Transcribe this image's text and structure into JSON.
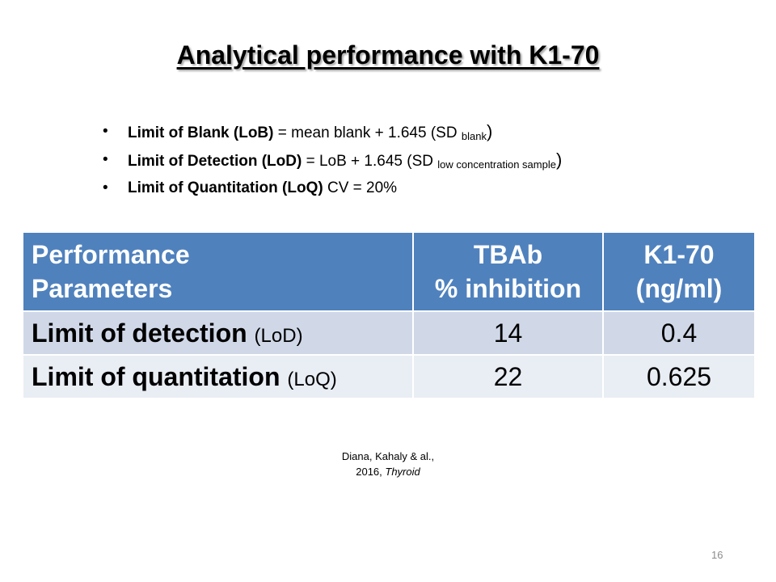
{
  "slide": {
    "title": "Analytical performance with K1-70",
    "bullets": [
      {
        "bold": "Limit of Blank (LoB)",
        "text": " = mean blank + 1.645 (SD ",
        "sub": "blank",
        "close": ")"
      },
      {
        "bold": "Limit of Detection (LoD)",
        "text": " = LoB + 1.645 (SD ",
        "sub": "low concentration sample",
        "close": ")"
      },
      {
        "bold": "Limit of Quantitation (LoQ)",
        "text": "  CV = 20%",
        "sub": "",
        "close": ""
      }
    ],
    "table": {
      "headers": [
        {
          "line1": "Performance",
          "line2": "Parameters"
        },
        {
          "line1": "TBAb",
          "line2": "% inhibition"
        },
        {
          "line1": "K1-70",
          "line2": "(ng/ml)"
        }
      ],
      "rows": [
        {
          "label": "Limit of detection",
          "abbr": "(LoD)",
          "tbab": "14",
          "k170": "0.4"
        },
        {
          "label": "Limit of quantitation",
          "abbr": "(LoQ)",
          "tbab": "22",
          "k170": "0.625"
        }
      ]
    },
    "citation": {
      "line1": "Diana, Kahaly & al.,",
      "line2_plain": "2016, ",
      "line2_italic": "Thyroid"
    },
    "page_number": "16"
  },
  "colors": {
    "header_bg": "#4f81bd",
    "row1_bg": "#d0d8e8",
    "row2_bg": "#e9edf4"
  }
}
